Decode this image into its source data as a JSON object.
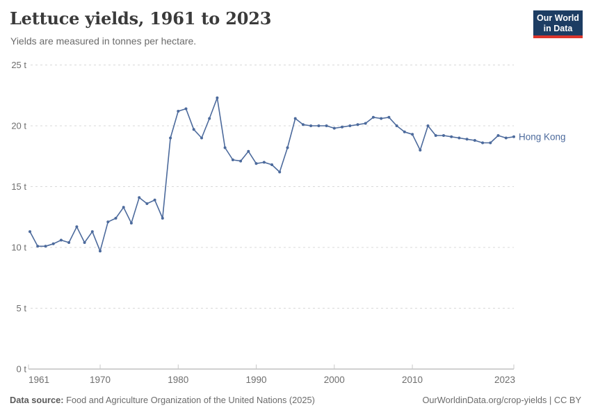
{
  "header": {
    "title": "Lettuce yields, 1961 to 2023",
    "subtitle": "Yields are measured in tonnes per hectare."
  },
  "logo": {
    "line1": "Our World",
    "line2": "in Data",
    "bg_color": "#1d3d63",
    "accent_color": "#dc352c"
  },
  "footer": {
    "source_label": "Data source:",
    "source_text": " Food and Agriculture Organization of the United Nations (2025)",
    "right_text": "OurWorldinData.org/crop-yields | CC BY"
  },
  "chart_data": {
    "type": "line",
    "title": "Lettuce yields, 1961 to 2023",
    "unit": "t",
    "xlabel": "",
    "ylabel": "tonnes per hectare",
    "ylim": [
      0,
      25
    ],
    "yticks": [
      0,
      5,
      10,
      15,
      20,
      25
    ],
    "ytick_suffix": " t",
    "xticks": [
      1961,
      1970,
      1980,
      1990,
      2000,
      2010,
      2023
    ],
    "grid": "horizontal-dashed",
    "gridline_color": "#d8d8d8",
    "axis_color": "#a1a1a1",
    "tick_color": "#c8c8c8",
    "label_color": "#6e6e6e",
    "legend_position": "end-of-line-label",
    "series": [
      {
        "name": "Hong Kong",
        "color": "#4c6a9c",
        "x": [
          1961,
          1962,
          1963,
          1964,
          1965,
          1966,
          1967,
          1968,
          1969,
          1970,
          1971,
          1972,
          1973,
          1974,
          1975,
          1976,
          1977,
          1978,
          1979,
          1980,
          1981,
          1982,
          1983,
          1984,
          1985,
          1986,
          1987,
          1988,
          1989,
          1990,
          1991,
          1992,
          1993,
          1994,
          1995,
          1996,
          1997,
          1998,
          1999,
          2000,
          2001,
          2002,
          2003,
          2004,
          2005,
          2006,
          2007,
          2008,
          2009,
          2010,
          2011,
          2012,
          2013,
          2014,
          2015,
          2016,
          2017,
          2018,
          2019,
          2020,
          2021,
          2022,
          2023
        ],
        "values": [
          11.3,
          10.1,
          10.1,
          10.3,
          10.6,
          10.4,
          11.7,
          10.4,
          11.3,
          9.7,
          12.1,
          12.4,
          13.3,
          12.0,
          14.1,
          13.6,
          13.9,
          12.4,
          19.0,
          21.2,
          21.4,
          19.7,
          19.0,
          20.6,
          22.3,
          18.2,
          17.2,
          17.1,
          17.9,
          16.9,
          17.0,
          16.8,
          16.2,
          18.2,
          20.6,
          20.1,
          20.0,
          20.0,
          20.0,
          19.8,
          19.9,
          20.0,
          20.1,
          20.2,
          20.7,
          20.6,
          20.7,
          20.0,
          19.5,
          19.3,
          18.0,
          20.0,
          19.2,
          19.2,
          19.1,
          19.0,
          18.9,
          18.8,
          18.6,
          18.6,
          19.2,
          19.0,
          19.1
        ]
      }
    ]
  }
}
